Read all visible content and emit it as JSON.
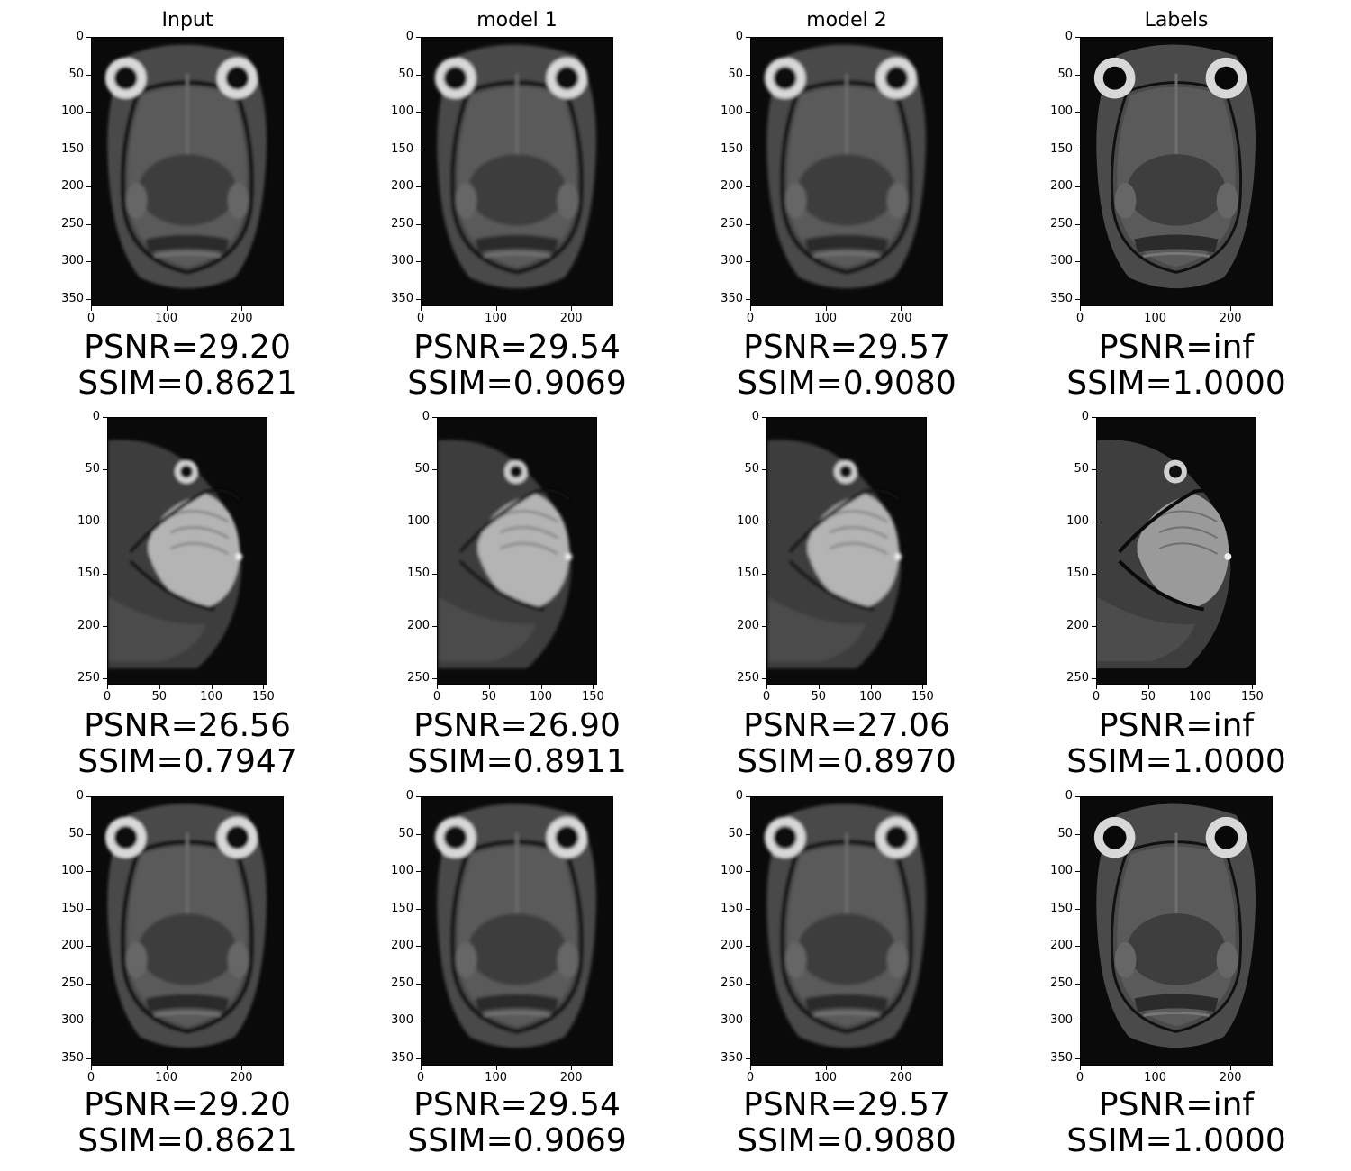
{
  "columns": [
    "Input",
    "model 1",
    "model 2",
    "Labels"
  ],
  "rows": [
    {
      "slice": "axial",
      "y_ticks": [
        "0",
        "50",
        "100",
        "150",
        "200",
        "250",
        "300",
        "350"
      ],
      "x_ticks": [
        "0",
        "100",
        "200"
      ],
      "y_max": 360,
      "x_max": 256,
      "metrics": [
        {
          "psnr": "PSNR=29.20",
          "ssim": "SSIM=0.8621"
        },
        {
          "psnr": "PSNR=29.54",
          "ssim": "SSIM=0.9069"
        },
        {
          "psnr": "PSNR=29.57",
          "ssim": "SSIM=0.9080"
        },
        {
          "psnr": "PSNR=inf",
          "ssim": "SSIM=1.0000"
        }
      ]
    },
    {
      "slice": "sagittal",
      "y_ticks": [
        "0",
        "50",
        "100",
        "150",
        "200",
        "250"
      ],
      "x_ticks": [
        "0",
        "50",
        "100",
        "150"
      ],
      "y_max": 256,
      "x_max": 154,
      "metrics": [
        {
          "psnr": "PSNR=26.56",
          "ssim": "SSIM=0.7947"
        },
        {
          "psnr": "PSNR=26.90",
          "ssim": "SSIM=0.8911"
        },
        {
          "psnr": "PSNR=27.06",
          "ssim": "SSIM=0.8970"
        },
        {
          "psnr": "PSNR=inf",
          "ssim": "SSIM=1.0000"
        }
      ]
    },
    {
      "slice": "axial",
      "y_ticks": [
        "0",
        "50",
        "100",
        "150",
        "200",
        "250",
        "300",
        "350"
      ],
      "x_ticks": [
        "0",
        "100",
        "200"
      ],
      "y_max": 360,
      "x_max": 256,
      "metrics": [
        {
          "psnr": "PSNR=29.20",
          "ssim": "SSIM=0.8621"
        },
        {
          "psnr": "PSNR=29.54",
          "ssim": "SSIM=0.9069"
        },
        {
          "psnr": "PSNR=29.57",
          "ssim": "SSIM=0.9080"
        },
        {
          "psnr": "PSNR=inf",
          "ssim": "SSIM=1.0000"
        }
      ]
    }
  ]
}
